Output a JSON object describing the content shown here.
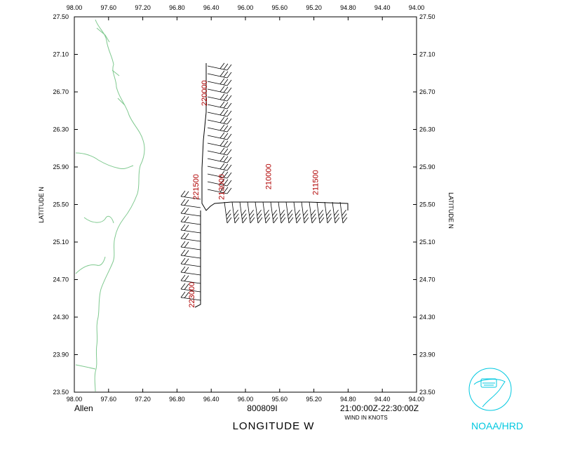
{
  "storm_name": "Allen",
  "flight_id": "800809I",
  "time_range": "21:00:00Z-22:30:00Z",
  "units_note": "WIND IN KNOTS",
  "x_axis_label": "LONGITUDE   W",
  "y_axis_label_left": "LATITUDE   N",
  "y_axis_label_right": "LATITUDE   N",
  "logo_text": "NOAA/HRD",
  "logo_icon": "noaa-logo-icon",
  "colors": {
    "coast": "#7fc98f",
    "track": "#000000",
    "time": "#b00000",
    "logo": "#00c8e0"
  },
  "x_ticks": [
    "98.00",
    "97.60",
    "97.20",
    "96.80",
    "96.40",
    "96.00",
    "95.60",
    "95.20",
    "94.80",
    "94.40",
    "94.00"
  ],
  "y_ticks": [
    "27.50",
    "27.10",
    "26.70",
    "26.30",
    "25.90",
    "25.50",
    "25.10",
    "24.70",
    "24.30",
    "23.90",
    "23.50"
  ],
  "time_labels": [
    {
      "text": "220000",
      "lon": 96.45,
      "lat": 26.55
    },
    {
      "text": "221500",
      "lon": 96.55,
      "lat": 25.55
    },
    {
      "text": "213000",
      "lon": 96.25,
      "lat": 25.55
    },
    {
      "text": "210000",
      "lon": 95.7,
      "lat": 25.66
    },
    {
      "text": "211500",
      "lon": 95.15,
      "lat": 25.6
    },
    {
      "text": "223000",
      "lon": 96.6,
      "lat": 24.4
    }
  ]
}
